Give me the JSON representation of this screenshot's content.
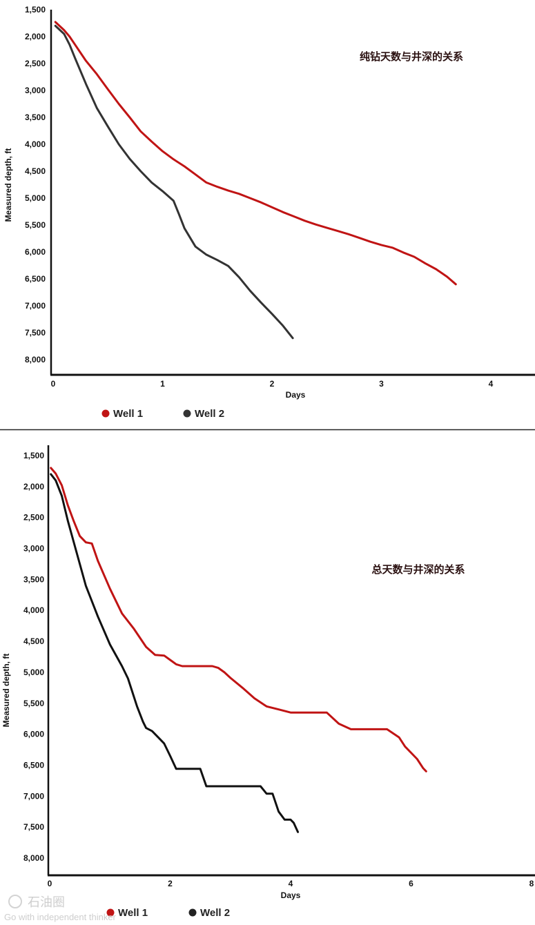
{
  "chart_data": [
    {
      "type": "line",
      "title": "纯钻天数与井深的关系",
      "xlabel": "Days",
      "ylabel": "Measured depth, ft",
      "xlim": [
        0,
        4.25
      ],
      "ylim": [
        1500,
        8300
      ],
      "y_inverted": true,
      "x_ticks": [
        0,
        1,
        2,
        3,
        4
      ],
      "x_tick_labels": [
        "0",
        "1",
        "2",
        "3",
        "4"
      ],
      "y_ticks": [
        1500,
        2000,
        2500,
        3000,
        3500,
        4000,
        4500,
        5000,
        5500,
        6000,
        6500,
        7000,
        7500,
        8000
      ],
      "y_tick_labels": [
        "1,500",
        "2,000",
        "2,500",
        "3,000",
        "3,500",
        "4,000",
        "4,500",
        "5,000",
        "5,500",
        "6,000",
        "6,500",
        "7,000",
        "7,500",
        "8,000"
      ],
      "grid": false,
      "legend_placement": "bottom-left",
      "series": [
        {
          "name": "Well 1",
          "color": "#c01414",
          "x": [
            0.02,
            0.1,
            0.15,
            0.2,
            0.3,
            0.4,
            0.5,
            0.6,
            0.7,
            0.8,
            0.9,
            1.0,
            1.1,
            1.2,
            1.3,
            1.4,
            1.5,
            1.6,
            1.7,
            1.8,
            1.9,
            2.0,
            2.1,
            2.2,
            2.3,
            2.4,
            2.5,
            2.6,
            2.7,
            2.8,
            2.9,
            3.0,
            3.1,
            3.2,
            3.3,
            3.4,
            3.5,
            3.6,
            3.68
          ],
          "y": [
            1730,
            1880,
            2000,
            2150,
            2450,
            2700,
            2980,
            3250,
            3500,
            3760,
            3950,
            4130,
            4280,
            4410,
            4560,
            4710,
            4790,
            4860,
            4920,
            5000,
            5080,
            5170,
            5260,
            5340,
            5420,
            5490,
            5550,
            5610,
            5670,
            5740,
            5810,
            5870,
            5920,
            6010,
            6090,
            6210,
            6320,
            6460,
            6600
          ]
        },
        {
          "name": "Well 2",
          "color": "#333333",
          "x": [
            0.02,
            0.1,
            0.15,
            0.2,
            0.3,
            0.4,
            0.5,
            0.6,
            0.7,
            0.8,
            0.9,
            1.0,
            1.1,
            1.15,
            1.2,
            1.3,
            1.4,
            1.5,
            1.6,
            1.7,
            1.8,
            1.9,
            2.0,
            2.1,
            2.19
          ],
          "y": [
            1800,
            1950,
            2150,
            2400,
            2880,
            3330,
            3670,
            4000,
            4270,
            4500,
            4710,
            4870,
            5050,
            5300,
            5560,
            5900,
            6050,
            6150,
            6260,
            6470,
            6720,
            6940,
            7150,
            7370,
            7600
          ]
        }
      ]
    },
    {
      "type": "line",
      "title": "总天数与井深的关系",
      "xlabel": "Days",
      "ylabel": "Measured depth, ft",
      "xlim": [
        0,
        8
      ],
      "ylim": [
        1500,
        8500
      ],
      "y_inverted": true,
      "x_ticks": [
        0,
        2,
        4,
        6,
        8
      ],
      "x_tick_labels": [
        "0",
        "2",
        "4",
        "6",
        "8"
      ],
      "y_ticks": [
        1500,
        2000,
        2500,
        3000,
        3500,
        4000,
        4500,
        5000,
        5500,
        6000,
        6500,
        7000,
        7500,
        8000
      ],
      "y_tick_labels": [
        "1,500",
        "2,000",
        "2,500",
        "3,000",
        "3,500",
        "4,000",
        "4,500",
        "5,000",
        "5,500",
        "6,000",
        "6,500",
        "7,000",
        "7,500",
        "8,000"
      ],
      "grid": false,
      "legend_placement": "bottom-left",
      "series": [
        {
          "name": "Well 1",
          "color": "#c01414",
          "x": [
            0.02,
            0.1,
            0.2,
            0.3,
            0.4,
            0.5,
            0.6,
            0.7,
            0.8,
            1.0,
            1.2,
            1.4,
            1.6,
            1.75,
            1.9,
            2.0,
            2.1,
            2.2,
            2.3,
            2.5,
            2.7,
            2.8,
            2.9,
            3.0,
            3.2,
            3.4,
            3.6,
            3.8,
            4.0,
            4.2,
            4.6,
            4.8,
            5.0,
            5.2,
            5.4,
            5.6,
            5.8,
            5.9,
            6.0,
            6.1,
            6.2,
            6.25
          ],
          "y": [
            1700,
            1790,
            1980,
            2300,
            2560,
            2800,
            2900,
            2920,
            3200,
            3650,
            4050,
            4300,
            4590,
            4720,
            4730,
            4800,
            4870,
            4900,
            4900,
            4900,
            4900,
            4930,
            5000,
            5090,
            5250,
            5420,
            5550,
            5600,
            5650,
            5650,
            5650,
            5830,
            5920,
            5920,
            5920,
            5920,
            6050,
            6200,
            6300,
            6400,
            6550,
            6600
          ]
        },
        {
          "name": "Well 2",
          "color": "#111111",
          "x": [
            0.02,
            0.1,
            0.2,
            0.3,
            0.4,
            0.5,
            0.6,
            0.8,
            1.0,
            1.2,
            1.3,
            1.45,
            1.55,
            1.6,
            1.7,
            1.8,
            1.9,
            2.0,
            2.1,
            2.2,
            2.3,
            2.5,
            2.6,
            2.8,
            3.0,
            3.2,
            3.5,
            3.6,
            3.7,
            3.8,
            3.9,
            4.0,
            4.05,
            4.12
          ],
          "y": [
            1800,
            1900,
            2150,
            2550,
            2900,
            3250,
            3600,
            4100,
            4550,
            4900,
            5100,
            5550,
            5800,
            5900,
            5950,
            6050,
            6150,
            6350,
            6560,
            6560,
            6560,
            6560,
            6840,
            6840,
            6840,
            6840,
            6840,
            6960,
            6960,
            7250,
            7380,
            7380,
            7430,
            7580
          ]
        }
      ]
    }
  ],
  "watermark": {
    "name": "石油圈",
    "tagline": "Go with independent thinker"
  }
}
